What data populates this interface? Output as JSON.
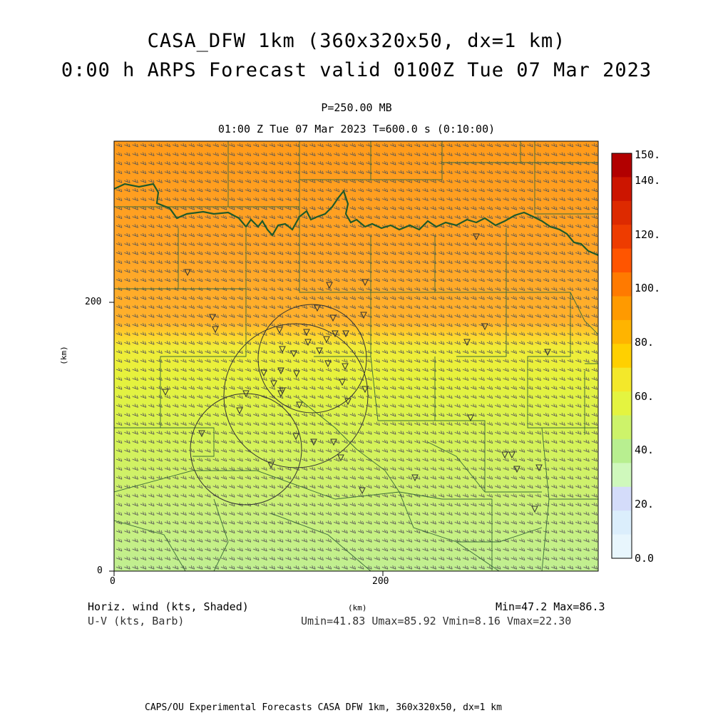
{
  "header": {
    "title_line1": "CASA_DFW 1km (360x320x50, dx=1 km)",
    "title_line2": "0:00 h ARPS Forecast valid 0100Z Tue 07 Mar 2023",
    "level": "P=250.00 MB",
    "time": "01:00 Z Tue 07 Mar 2023    T=600.0 s (0:10:00)"
  },
  "axes": {
    "xlabel": "(km)",
    "ylabel": "(km)",
    "x_ticks": [
      "0",
      "200"
    ],
    "y_ticks": [
      "0",
      "200"
    ],
    "x_range": [
      0,
      360
    ],
    "y_range": [
      0,
      320
    ]
  },
  "colorbar": {
    "labels": [
      "150.",
      "140.",
      "120.",
      "100.",
      "80.",
      "60.",
      "40.",
      "20.",
      "0.0"
    ],
    "colors": [
      "#b20000",
      "#cc1500",
      "#dd2a00",
      "#ee3c00",
      "#ff5500",
      "#ff7a00",
      "#ff9a00",
      "#ffb400",
      "#ffd000",
      "#f4e82a",
      "#e4f440",
      "#cdf36a",
      "#b8ef90",
      "#cff8bc",
      "#d4dcfa",
      "#dbeefc",
      "#e8f6fd"
    ],
    "range": [
      0,
      150
    ]
  },
  "footer": {
    "left_line1": "Horiz. wind (kts, Shaded)",
    "left_line2": "U-V (kts, Barb)",
    "center_label": "(km)",
    "minmax": "Min=47.2 Max=86.3",
    "uv_minmax": "Umin=41.83 Umax=85.92 Vmin=8.16 Vmax=22.30",
    "credit": "CAPS/OU Experimental Forecasts  CASA DFW 1km, 360x320x50, dx=1 km"
  },
  "field": {
    "min": 47.2,
    "max": 86.3
  }
}
